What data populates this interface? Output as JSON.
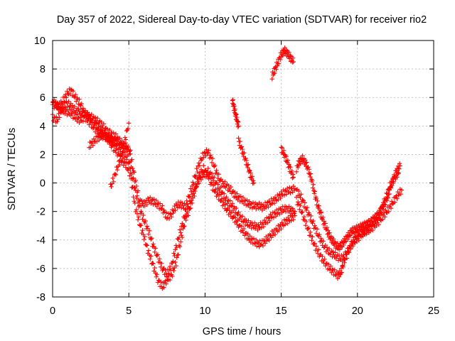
{
  "chart_data": {
    "type": "scatter",
    "title": "Day 357 of 2022, Sidereal Day-to-day VTEC variation (SDTVAR) for receiver rio2",
    "xlabel": "GPS time / hours",
    "ylabel": "SDTVAR / TECUs",
    "xlim": [
      0,
      25
    ],
    "ylim": [
      -8,
      10
    ],
    "x_ticks": [
      0,
      5,
      10,
      15,
      20,
      25
    ],
    "y_ticks": [
      -8,
      -6,
      -4,
      -2,
      0,
      2,
      4,
      6,
      8,
      10
    ],
    "grid": true,
    "legend": "none",
    "marker": "plus",
    "color": "#ff0000",
    "series": [
      {
        "x": [
          0.0,
          0.3,
          0.6,
          0.9,
          1.2,
          1.5,
          1.8,
          2.1,
          2.4,
          2.7,
          3.0,
          3.3,
          3.6,
          3.9,
          4.2,
          4.5,
          4.8,
          5.1,
          5.4,
          5.7,
          6.0,
          6.3,
          6.6,
          6.9,
          7.2,
          7.5,
          7.8,
          8.1,
          8.4,
          8.7,
          9.0,
          9.3,
          9.6,
          9.9,
          10.2,
          10.5,
          10.8,
          11.1,
          11.4,
          11.7,
          12.0,
          12.3,
          12.6,
          12.9,
          13.2,
          13.5,
          13.8,
          14.1,
          14.4,
          14.7,
          15.0,
          15.3,
          15.6,
          15.9
        ],
        "y": [
          5.5,
          5.4,
          5.6,
          6.2,
          6.5,
          6.0,
          5.6,
          4.9,
          4.7,
          4.5,
          4.3,
          4.0,
          3.6,
          3.4,
          3.2,
          2.8,
          2.6,
          2.0,
          0.3,
          -1.3,
          -1.5,
          -1.2,
          -1.3,
          -1.5,
          -1.8,
          -2.4,
          -2.2,
          -1.6,
          -1.5,
          -1.7,
          -0.8,
          0.3,
          1.3,
          2.0,
          2.2,
          1.5,
          0.6,
          0.0,
          -0.2,
          -0.5,
          -0.9,
          -1.1,
          -1.3,
          -1.5,
          -1.6,
          -1.6,
          -1.7,
          -1.5,
          -1.3,
          -1.1,
          -0.8,
          -0.6,
          -0.5,
          -0.4
        ]
      },
      {
        "x": [
          0.0,
          0.3,
          0.6,
          0.9,
          1.2,
          1.5,
          1.8,
          2.1,
          2.4,
          2.7,
          3.0,
          3.3,
          3.6,
          3.9,
          4.2,
          4.5,
          4.8,
          5.1,
          5.4,
          5.7,
          6.0,
          6.3,
          6.6,
          6.9,
          7.2,
          7.5,
          7.8,
          8.1,
          8.4,
          8.7,
          9.0,
          9.3,
          9.6,
          9.9,
          10.2,
          10.5,
          10.8,
          11.1,
          11.4,
          11.7,
          12.0,
          12.3,
          12.6,
          12.9,
          13.2,
          13.5,
          13.8,
          14.1,
          14.4,
          14.7,
          15.0,
          15.3,
          15.6,
          15.9
        ],
        "y": [
          4.6,
          4.4,
          5.2,
          5.6,
          5.4,
          5.1,
          5.0,
          4.8,
          4.6,
          4.3,
          3.8,
          3.5,
          3.2,
          3.0,
          2.7,
          2.3,
          1.9,
          1.2,
          -0.4,
          -1.8,
          -2.6,
          -3.4,
          -4.4,
          -5.2,
          -6.0,
          -6.4,
          -5.8,
          -4.5,
          -3.3,
          -2.2,
          -1.5,
          -0.5,
          0.2,
          0.6,
          0.8,
          0.4,
          -0.2,
          -0.7,
          -1.2,
          -1.5,
          -1.9,
          -2.4,
          -2.7,
          -2.9,
          -3.0,
          -3.1,
          -2.9,
          -2.6,
          -2.3,
          -2.1,
          -1.9,
          -1.8,
          -1.9,
          -2.0
        ]
      },
      {
        "x": [
          0.0,
          0.3,
          0.6,
          0.9,
          1.2,
          1.5,
          1.8,
          2.1,
          2.4,
          2.7,
          3.0,
          3.3,
          3.6,
          3.9,
          4.2,
          4.5,
          4.8,
          5.1,
          5.4,
          5.7,
          6.0,
          6.3,
          6.6,
          6.9,
          7.2,
          7.5,
          7.8,
          8.1,
          8.4,
          8.7,
          9.0,
          9.3,
          9.6,
          9.9,
          10.2,
          10.5,
          10.8,
          11.1,
          11.4,
          11.7,
          12.0,
          12.3,
          12.6,
          12.9,
          13.2,
          13.5,
          13.8,
          14.1,
          14.4,
          14.7,
          15.0,
          15.3,
          15.6,
          15.9
        ],
        "y": [
          5.8,
          5.4,
          5.1,
          5.0,
          4.9,
          4.6,
          4.4,
          4.6,
          4.3,
          3.9,
          3.6,
          3.4,
          3.1,
          2.6,
          2.2,
          1.6,
          1.3,
          0.6,
          -1.6,
          -2.8,
          -3.8,
          -4.9,
          -5.8,
          -6.8,
          -7.3,
          -6.8,
          -6.5,
          -5.6,
          -4.1,
          -2.6,
          -1.8,
          -0.7,
          0.5,
          1.0,
          0.5,
          -0.3,
          -0.8,
          -1.3,
          -1.8,
          -2.2,
          -2.6,
          -3.1,
          -3.5,
          -3.9,
          -4.1,
          -4.3,
          -4.2,
          -3.9,
          -3.6,
          -3.3,
          -3.0,
          -2.7,
          -2.5,
          -2.3
        ]
      },
      {
        "x": [
          2.4,
          2.7,
          3.0,
          3.3,
          3.6,
          3.9,
          4.2,
          4.5,
          4.8,
          5.1
        ],
        "y": [
          2.6,
          2.9,
          3.2,
          3.3,
          3.2,
          3.0,
          2.9,
          2.7,
          2.5,
          2.3
        ]
      },
      {
        "x": [
          3.8,
          4.1,
          4.4,
          4.7,
          5.0
        ],
        "y": [
          -0.3,
          0.6,
          1.5,
          2.8,
          4.2
        ]
      },
      {
        "x": [
          11.8,
          11.9,
          12.0,
          12.1,
          12.2
        ],
        "y": [
          5.8,
          5.3,
          4.8,
          4.4,
          4.0
        ]
      },
      {
        "x": [
          14.4,
          14.6,
          14.8,
          15.0,
          15.2,
          15.4,
          15.6,
          15.8
        ],
        "y": [
          7.5,
          8.0,
          8.5,
          9.0,
          9.3,
          9.1,
          8.8,
          8.5
        ]
      },
      {
        "x": [
          12.2,
          12.4,
          12.6,
          12.8,
          13.0,
          13.2
        ],
        "y": [
          3.0,
          2.4,
          1.8,
          1.2,
          0.5,
          0.0
        ]
      },
      {
        "x": [
          15.0,
          15.2,
          15.4,
          15.6,
          15.8
        ],
        "y": [
          2.4,
          2.0,
          1.5,
          0.9,
          0.4
        ]
      },
      {
        "x": [
          16.0,
          16.2,
          16.4,
          16.6,
          16.8,
          17.0,
          17.2,
          17.4,
          17.6,
          17.8,
          18.0,
          18.2,
          18.4,
          18.6,
          18.8,
          19.0,
          19.2,
          19.4,
          19.6,
          19.8,
          20.0,
          20.2,
          20.4,
          20.6,
          20.8,
          21.0,
          21.2,
          21.4,
          21.6,
          21.8,
          22.0,
          22.2,
          22.4,
          22.6,
          22.8
        ],
        "y": [
          1.0,
          1.5,
          1.7,
          1.4,
          0.9,
          0.2,
          -0.8,
          -1.6,
          -2.2,
          -2.8,
          -3.3,
          -3.8,
          -4.1,
          -4.4,
          -4.5,
          -4.3,
          -4.0,
          -3.7,
          -3.4,
          -3.3,
          -3.2,
          -3.1,
          -3.0,
          -2.9,
          -2.8,
          -2.6,
          -2.4,
          -2.2,
          -1.8,
          -1.4,
          -0.9,
          -0.2,
          0.4,
          0.9,
          1.2
        ]
      },
      {
        "x": [
          16.0,
          16.3,
          16.6,
          16.9,
          17.2,
          17.5,
          17.8,
          18.1,
          18.4,
          18.7,
          19.0,
          19.3,
          19.6,
          19.9,
          20.2,
          20.5,
          20.8,
          21.1,
          21.4,
          21.7,
          22.0,
          22.3,
          22.6,
          22.9
        ],
        "y": [
          -0.5,
          -1.0,
          -1.7,
          -2.4,
          -3.1,
          -3.8,
          -4.4,
          -4.8,
          -5.0,
          -5.2,
          -5.3,
          -4.9,
          -4.3,
          -3.8,
          -3.5,
          -3.4,
          -3.3,
          -3.0,
          -2.7,
          -2.3,
          -1.9,
          -1.4,
          -0.9,
          -0.5
        ]
      },
      {
        "x": [
          16.0,
          16.3,
          16.6,
          16.9,
          17.2,
          17.5,
          17.8,
          18.1,
          18.4,
          18.7,
          18.9,
          19.1,
          19.4,
          19.7,
          20.0,
          20.3,
          20.6,
          20.9,
          21.2,
          21.5,
          21.8,
          22.1,
          22.4,
          22.7
        ],
        "y": [
          -1.2,
          -1.9,
          -2.8,
          -3.6,
          -4.4,
          -5.0,
          -5.5,
          -5.9,
          -6.2,
          -6.5,
          -6.3,
          -5.6,
          -4.8,
          -4.2,
          -3.9,
          -3.6,
          -3.3,
          -3.0,
          -2.6,
          -2.0,
          -1.2,
          -0.3,
          0.3,
          0.7
        ]
      }
    ]
  }
}
